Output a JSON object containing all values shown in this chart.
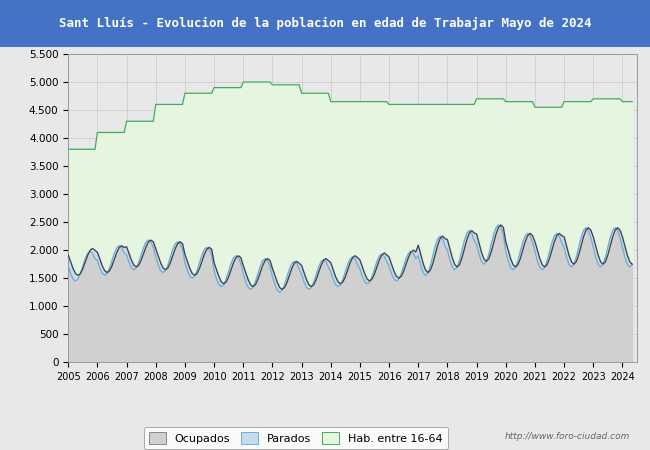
{
  "title": "Sant Lluís - Evolucion de la poblacion en edad de Trabajar Mayo de 2024",
  "title_bg_color": "#4472c4",
  "title_text_color": "white",
  "ylim": [
    0,
    5500
  ],
  "yticks": [
    0,
    500,
    1000,
    1500,
    2000,
    2500,
    3000,
    3500,
    4000,
    4500,
    5000,
    5500
  ],
  "xstart": 2005,
  "xend": 2024.5,
  "watermark": "http://www.foro-ciudad.com",
  "legend_labels": [
    "Ocupados",
    "Parados",
    "Hab. entre 16-64"
  ],
  "ocupados_color": "#404040",
  "ocupados_fill": "#d0d0d0",
  "parados_color": "#6baed6",
  "parados_fill": "#c6dbef",
  "hab_color": "#41ab5d",
  "hab_fill": "#e5f5e0",
  "background_color": "#e8e8e8",
  "plot_bg_color": "#e8e8e8",
  "grid_color": "#c8c8c8"
}
